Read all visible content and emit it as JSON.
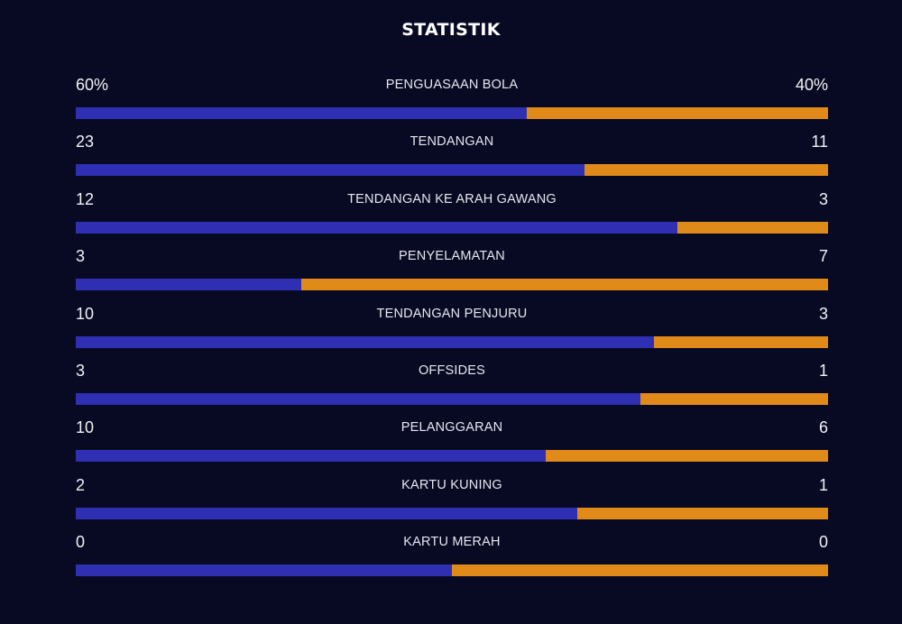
{
  "title": "STATISTIK",
  "colors": {
    "background": "#080a23",
    "home_bar": "#2e2fb3",
    "away_bar": "#e08a1a"
  },
  "stats": [
    {
      "label": "PENGUASAAN BOLA",
      "home": "60%",
      "away": "40%",
      "home_share": 0.6
    },
    {
      "label": "TENDANGAN",
      "home": "23",
      "away": "11",
      "home_share": 0.676
    },
    {
      "label": "TENDANGAN KE ARAH GAWANG",
      "home": "12",
      "away": "3",
      "home_share": 0.8
    },
    {
      "label": "PENYELAMATAN",
      "home": "3",
      "away": "7",
      "home_share": 0.3
    },
    {
      "label": "TENDANGAN PENJURU",
      "home": "10",
      "away": "3",
      "home_share": 0.769
    },
    {
      "label": "OFFSIDES",
      "home": "3",
      "away": "1",
      "home_share": 0.75
    },
    {
      "label": "PELANGGARAN",
      "home": "10",
      "away": "6",
      "home_share": 0.625
    },
    {
      "label": "KARTU KUNING",
      "home": "2",
      "away": "1",
      "home_share": 0.667
    },
    {
      "label": "KARTU MERAH",
      "home": "0",
      "away": "0",
      "home_share": 0.5
    }
  ]
}
